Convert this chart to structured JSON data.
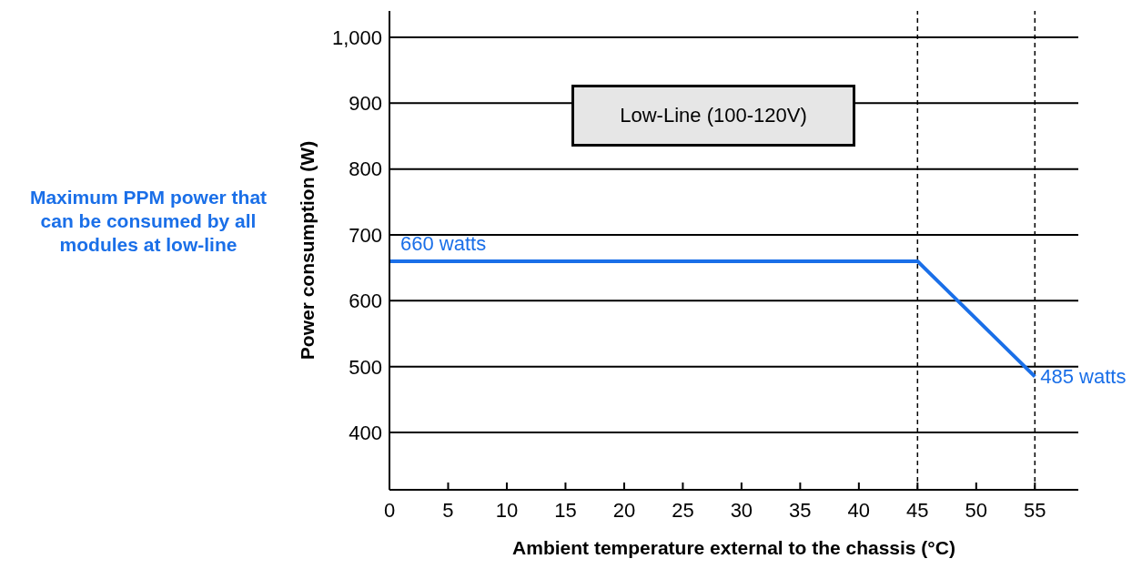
{
  "chart_data": {
    "type": "line",
    "xlabel": "Ambient temperature external to the chassis (°C)",
    "ylabel": "Power consumption (W)",
    "x": [
      0,
      45,
      55
    ],
    "series": [
      {
        "color": "#1a6fe8",
        "values": [
          660,
          660,
          485
        ]
      }
    ],
    "xlim": [
      0,
      58.7
    ],
    "xticks": [
      0,
      5,
      10,
      15,
      20,
      25,
      30,
      35,
      40,
      45,
      50,
      55
    ],
    "ylim": [
      313,
      1040
    ],
    "yticks": [
      400,
      500,
      600,
      700,
      800,
      900,
      {
        "value": 1000,
        "label": "1,000"
      }
    ],
    "grid": "y",
    "marker": "none",
    "line_style": "solid",
    "legend": false,
    "ref_lines": [
      {
        "axis": "x",
        "value": 45,
        "line_style": "dashed",
        "color": "#000000"
      },
      {
        "axis": "x",
        "value": 55,
        "line_style": "dashed",
        "color": "#000000"
      }
    ],
    "annotations": [
      "Low-Line (100-120V)",
      "Maximum PPM power that can be consumed by all modules at low-line",
      {
        "text": "660 watts",
        "x": 0,
        "y": 660
      },
      {
        "text": "485 watts",
        "x": 55,
        "y": 485
      }
    ]
  }
}
